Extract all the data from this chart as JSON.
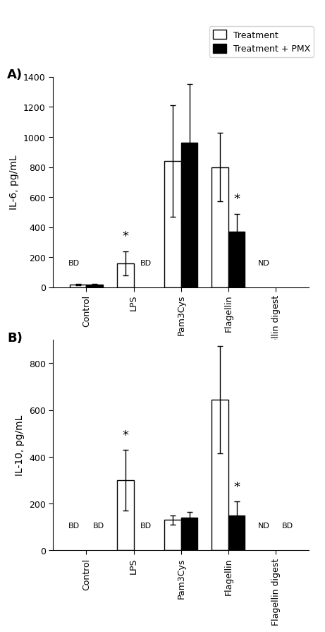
{
  "panel_A": {
    "ylabel": "IL-6, pg/mL",
    "ylim": [
      0,
      1400
    ],
    "yticks": [
      0,
      200,
      400,
      600,
      800,
      1000,
      1200,
      1400
    ],
    "categories": [
      "Control",
      "LPS",
      "Pam3Cys",
      "Flagellin",
      "Flagellin digest"
    ],
    "treatment_values": [
      20,
      160,
      840,
      800,
      0
    ],
    "treatment_errors": [
      5,
      80,
      370,
      230,
      0
    ],
    "pmx_values": [
      20,
      0,
      960,
      370,
      0
    ],
    "pmx_errors": [
      5,
      0,
      390,
      120,
      0
    ],
    "annotations": {
      "Control": {
        "treatment": "BD",
        "pmx": null
      },
      "LPS": {
        "treatment": "*",
        "pmx": "BD"
      },
      "Pam3Cys": {
        "treatment": null,
        "pmx": null
      },
      "Flagellin": {
        "treatment": null,
        "pmx": "*"
      },
      "Flagellin digest": {
        "treatment": "ND",
        "pmx": null
      }
    },
    "label": "A)"
  },
  "panel_B": {
    "ylabel": "IL-10, pg/mL",
    "ylim": [
      0,
      900
    ],
    "yticks": [
      0,
      200,
      400,
      600,
      800
    ],
    "categories": [
      "Control",
      "LPS",
      "Pam3Cys",
      "Flagellin",
      "Flagellin digest"
    ],
    "treatment_values": [
      0,
      300,
      130,
      645,
      0
    ],
    "treatment_errors": [
      0,
      130,
      20,
      230,
      0
    ],
    "pmx_values": [
      0,
      0,
      140,
      150,
      0
    ],
    "pmx_errors": [
      0,
      0,
      25,
      60,
      0
    ],
    "annotations": {
      "Control": {
        "treatment": "BD",
        "pmx": "BD"
      },
      "LPS": {
        "treatment": "*",
        "pmx": "BD"
      },
      "Pam3Cys": {
        "treatment": null,
        "pmx": null
      },
      "Flagellin": {
        "treatment": null,
        "pmx": "*"
      },
      "Flagellin digest": {
        "treatment": "ND",
        "pmx": "BD"
      }
    },
    "label": "B)"
  },
  "legend": {
    "treatment_label": "Treatment",
    "pmx_label": "Treatment + PMX"
  },
  "bar_width": 0.35,
  "treatment_color": "white",
  "pmx_color": "black",
  "edge_color": "black",
  "background_color": "white"
}
